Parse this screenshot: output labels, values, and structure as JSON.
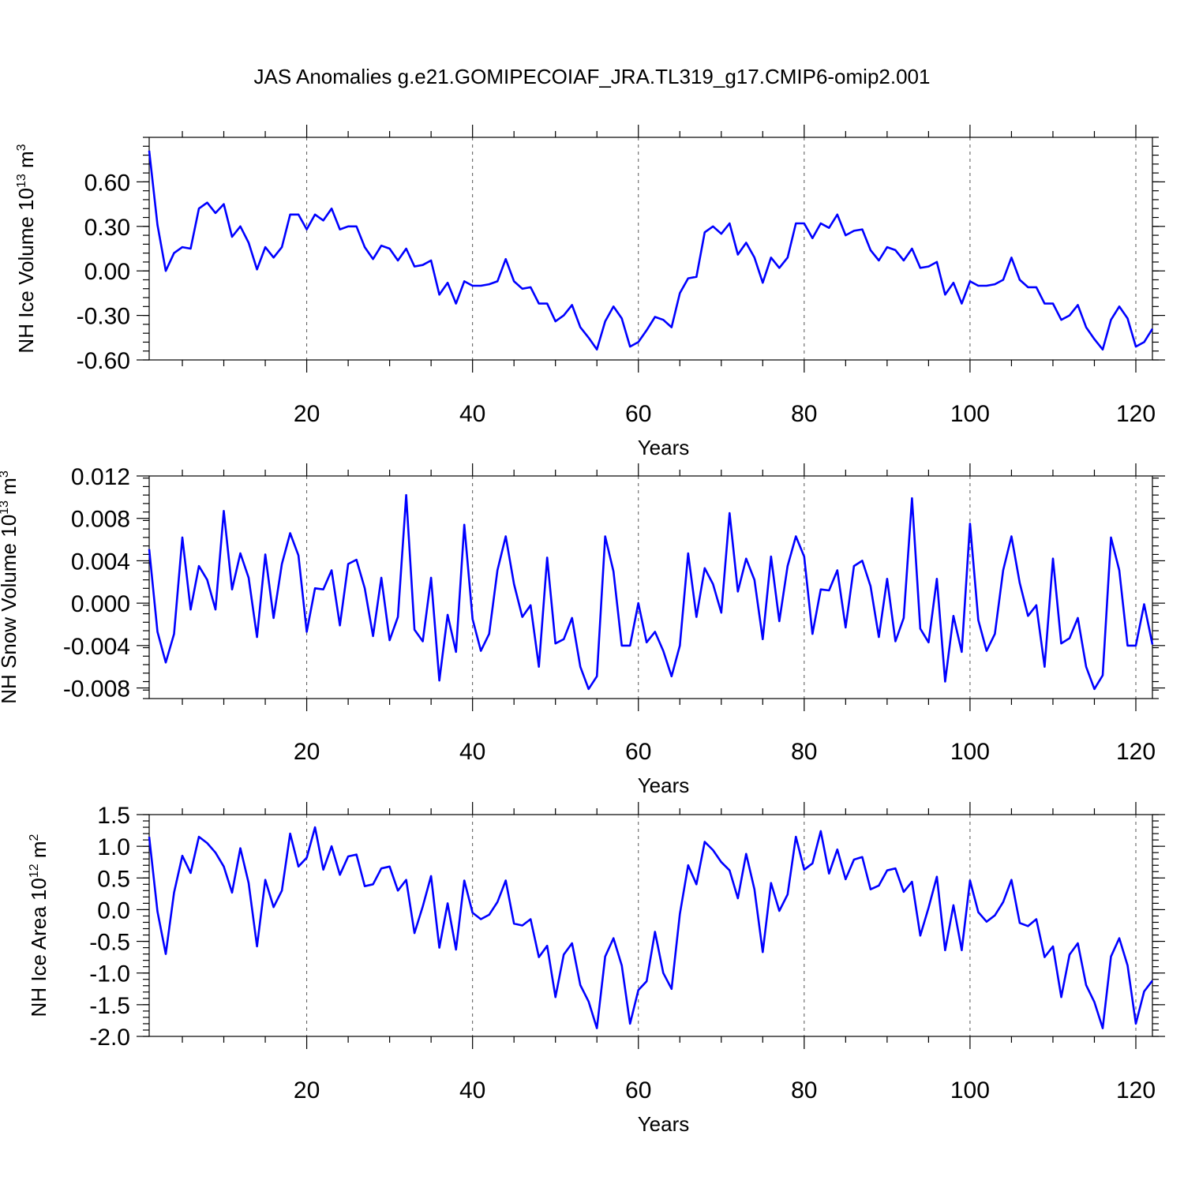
{
  "title": "JAS Anomalies g.e21.GOMIPECOIAF_JRA.TL319_g17.CMIP6-omip2.001",
  "colors": {
    "line": "#0000ff",
    "axes": "#000000",
    "grid": "#555555"
  },
  "chart_data": [
    {
      "type": "line",
      "name": "ice-volume",
      "ylabel_main": "NH Ice Volume 10",
      "ylabel_sup": "13",
      "ylabel_unit": " m",
      "ylabel_unit_sup": "3",
      "xlabel": "Years",
      "xlim": [
        1,
        122
      ],
      "ylim": [
        -0.6,
        0.9
      ],
      "yticks": [
        -0.6,
        -0.3,
        0.0,
        0.3,
        0.6
      ],
      "ytick_labels": [
        "-0.60",
        "-0.30",
        "0.00",
        "0.30",
        "0.60"
      ],
      "yminor_step": 0.06,
      "xticks": [
        20,
        40,
        60,
        80,
        100,
        120
      ],
      "xtick_labels": [
        "20",
        "40",
        "60",
        "80",
        "100",
        "120"
      ],
      "grid_x": true,
      "x": [
        1,
        2,
        3,
        4,
        5,
        6,
        7,
        8,
        9,
        10,
        11,
        12,
        13,
        14,
        15,
        16,
        17,
        18,
        19,
        20,
        21,
        22,
        23,
        24,
        25,
        26,
        27,
        28,
        29,
        30,
        31,
        32,
        33,
        34,
        35,
        36,
        37,
        38,
        39,
        40,
        41,
        42,
        43,
        44,
        45,
        46,
        47,
        48,
        49,
        50,
        51,
        52,
        53,
        54,
        55,
        56,
        57,
        58,
        59,
        60,
        61,
        62,
        63,
        64,
        65,
        66,
        67,
        68,
        69,
        70,
        71,
        72,
        73,
        74,
        75,
        76,
        77,
        78,
        79,
        80,
        81,
        82,
        83,
        84,
        85,
        86,
        87,
        88,
        89,
        90,
        91,
        92,
        93,
        94,
        95,
        96,
        97,
        98,
        99,
        100,
        101,
        102,
        103,
        104,
        105,
        106,
        107,
        108,
        109,
        110,
        111,
        112,
        113,
        114,
        115,
        116,
        117,
        118,
        119,
        120,
        121,
        122
      ],
      "values": [
        0.81,
        0.31,
        0.0,
        0.12,
        0.16,
        0.15,
        0.42,
        0.46,
        0.39,
        0.45,
        0.23,
        0.3,
        0.19,
        0.01,
        0.16,
        0.09,
        0.16,
        0.38,
        0.38,
        0.28,
        0.38,
        0.34,
        0.42,
        0.28,
        0.3,
        0.3,
        0.16,
        0.08,
        0.17,
        0.15,
        0.07,
        0.15,
        0.03,
        0.04,
        0.07,
        -0.16,
        -0.08,
        -0.22,
        -0.07,
        -0.1,
        -0.1,
        -0.09,
        -0.07,
        0.08,
        -0.07,
        -0.12,
        -0.11,
        -0.22,
        -0.22,
        -0.34,
        -0.3,
        -0.23,
        -0.38,
        -0.45,
        -0.53,
        -0.34,
        -0.24,
        -0.32,
        -0.51,
        -0.48,
        -0.4,
        -0.31,
        -0.33,
        -0.38,
        -0.15,
        -0.05,
        -0.04,
        0.26,
        0.3,
        0.25,
        0.32,
        0.11,
        0.19,
        0.09,
        -0.08,
        0.09,
        0.02,
        0.09,
        0.32,
        0.32,
        0.22,
        0.32,
        0.29,
        0.38,
        0.24,
        0.27,
        0.28,
        0.14,
        0.07,
        0.16,
        0.14,
        0.07,
        0.15,
        0.02,
        0.03,
        0.06,
        -0.16,
        -0.08,
        -0.22,
        -0.07,
        -0.1,
        -0.1,
        -0.09,
        -0.06,
        0.09,
        -0.06,
        -0.11,
        -0.11,
        -0.22,
        -0.22,
        -0.33,
        -0.3,
        -0.23,
        -0.38,
        -0.46,
        -0.53,
        -0.33,
        -0.24,
        -0.32,
        -0.51,
        -0.48,
        -0.39
      ]
    },
    {
      "type": "line",
      "name": "snow-volume",
      "ylabel_main": "NH Snow Volume 10",
      "ylabel_sup": "13",
      "ylabel_unit": " m",
      "ylabel_unit_sup": "3",
      "xlabel": "Years",
      "xlim": [
        1,
        122
      ],
      "ylim": [
        -0.009,
        0.012
      ],
      "yticks": [
        -0.008,
        -0.004,
        0.0,
        0.004,
        0.008,
        0.012
      ],
      "ytick_labels": [
        "-0.008",
        "-0.004",
        "0.000",
        "0.004",
        "0.008",
        "0.012"
      ],
      "yminor_step": 0.0008,
      "xticks": [
        20,
        40,
        60,
        80,
        100,
        120
      ],
      "xtick_labels": [
        "20",
        "40",
        "60",
        "80",
        "100",
        "120"
      ],
      "grid_x": true,
      "x": [
        1,
        2,
        3,
        4,
        5,
        6,
        7,
        8,
        9,
        10,
        11,
        12,
        13,
        14,
        15,
        16,
        17,
        18,
        19,
        20,
        21,
        22,
        23,
        24,
        25,
        26,
        27,
        28,
        29,
        30,
        31,
        32,
        33,
        34,
        35,
        36,
        37,
        38,
        39,
        40,
        41,
        42,
        43,
        44,
        45,
        46,
        47,
        48,
        49,
        50,
        51,
        52,
        53,
        54,
        55,
        56,
        57,
        58,
        59,
        60,
        61,
        62,
        63,
        64,
        65,
        66,
        67,
        68,
        69,
        70,
        71,
        72,
        73,
        74,
        75,
        76,
        77,
        78,
        79,
        80,
        81,
        82,
        83,
        84,
        85,
        86,
        87,
        88,
        89,
        90,
        91,
        92,
        93,
        94,
        95,
        96,
        97,
        98,
        99,
        100,
        101,
        102,
        103,
        104,
        105,
        106,
        107,
        108,
        109,
        110,
        111,
        112,
        113,
        114,
        115,
        116,
        117,
        118,
        119,
        120,
        121,
        122
      ],
      "values": [
        0.0051,
        -0.0027,
        -0.0056,
        -0.0029,
        0.0062,
        -0.0006,
        0.0035,
        0.0022,
        -0.0006,
        0.0087,
        0.0013,
        0.0047,
        0.0024,
        -0.0032,
        0.0046,
        -0.0014,
        0.0037,
        0.0066,
        0.0045,
        -0.0027,
        0.0014,
        0.0013,
        0.0031,
        -0.0021,
        0.0037,
        0.0041,
        0.0014,
        -0.0031,
        0.0024,
        -0.0035,
        -0.0013,
        0.0102,
        -0.0025,
        -0.0036,
        0.0024,
        -0.0073,
        -0.0011,
        -0.0046,
        0.0074,
        -0.0015,
        -0.0045,
        -0.0029,
        0.0031,
        0.0063,
        0.0018,
        -0.0013,
        -0.0002,
        -0.006,
        0.0043,
        -0.0038,
        -0.0034,
        -0.0014,
        -0.006,
        -0.0081,
        -0.0069,
        0.0063,
        0.003,
        -0.004,
        -0.004,
        0.0,
        -0.0037,
        -0.0027,
        -0.0045,
        -0.0069,
        -0.004,
        0.0047,
        -0.0013,
        0.0033,
        0.0018,
        -0.0009,
        0.0085,
        0.0011,
        0.0042,
        0.0022,
        -0.0034,
        0.0044,
        -0.0017,
        0.0035,
        0.0063,
        0.0044,
        -0.0029,
        0.0013,
        0.0012,
        0.0031,
        -0.0023,
        0.0035,
        0.004,
        0.0016,
        -0.0032,
        0.0023,
        -0.0036,
        -0.0014,
        0.0099,
        -0.0024,
        -0.0037,
        0.0023,
        -0.0074,
        -0.0012,
        -0.0046,
        0.0075,
        -0.0016,
        -0.0045,
        -0.0029,
        0.0031,
        0.0063,
        0.0019,
        -0.0012,
        -0.0002,
        -0.006,
        0.0042,
        -0.0038,
        -0.0033,
        -0.0014,
        -0.006,
        -0.0081,
        -0.0068,
        0.0062,
        0.0031,
        -0.004,
        -0.004,
        -0.0001,
        -0.0039
      ]
    },
    {
      "type": "line",
      "name": "ice-area",
      "ylabel_main": "NH Ice Area 10",
      "ylabel_sup": "12",
      "ylabel_unit": " m",
      "ylabel_unit_sup": "2",
      "xlabel": "Years",
      "xlim": [
        1,
        122
      ],
      "ylim": [
        -2.0,
        1.5
      ],
      "yticks": [
        -2.0,
        -1.5,
        -1.0,
        -0.5,
        0.0,
        0.5,
        1.0,
        1.5
      ],
      "ytick_labels": [
        "-2.0",
        "-1.5",
        "-1.0",
        "-0.5",
        "0.0",
        "0.5",
        "1.0",
        "1.5"
      ],
      "yminor_step": 0.1,
      "xticks": [
        20,
        40,
        60,
        80,
        100,
        120
      ],
      "xtick_labels": [
        "20",
        "40",
        "60",
        "80",
        "100",
        "120"
      ],
      "grid_x": true,
      "x": [
        1,
        2,
        3,
        4,
        5,
        6,
        7,
        8,
        9,
        10,
        11,
        12,
        13,
        14,
        15,
        16,
        17,
        18,
        19,
        20,
        21,
        22,
        23,
        24,
        25,
        26,
        27,
        28,
        29,
        30,
        31,
        32,
        33,
        34,
        35,
        36,
        37,
        38,
        39,
        40,
        41,
        42,
        43,
        44,
        45,
        46,
        47,
        48,
        49,
        50,
        51,
        52,
        53,
        54,
        55,
        56,
        57,
        58,
        59,
        60,
        61,
        62,
        63,
        64,
        65,
        66,
        67,
        68,
        69,
        70,
        71,
        72,
        73,
        74,
        75,
        76,
        77,
        78,
        79,
        80,
        81,
        82,
        83,
        84,
        85,
        86,
        87,
        88,
        89,
        90,
        91,
        92,
        93,
        94,
        95,
        96,
        97,
        98,
        99,
        100,
        101,
        102,
        103,
        104,
        105,
        106,
        107,
        108,
        109,
        110,
        111,
        112,
        113,
        114,
        115,
        116,
        117,
        118,
        119,
        120,
        121,
        122
      ],
      "values": [
        1.15,
        -0.03,
        -0.7,
        0.27,
        0.85,
        0.58,
        1.15,
        1.05,
        0.9,
        0.68,
        0.27,
        0.97,
        0.42,
        -0.58,
        0.47,
        0.04,
        0.3,
        1.2,
        0.68,
        0.82,
        1.3,
        0.63,
        1.0,
        0.55,
        0.84,
        0.87,
        0.37,
        0.4,
        0.65,
        0.68,
        0.3,
        0.47,
        -0.37,
        0.05,
        0.53,
        -0.6,
        0.1,
        -0.63,
        0.46,
        -0.05,
        -0.15,
        -0.08,
        0.12,
        0.46,
        -0.22,
        -0.25,
        -0.15,
        -0.75,
        -0.57,
        -1.38,
        -0.71,
        -0.53,
        -1.19,
        -1.45,
        -1.87,
        -0.74,
        -0.45,
        -0.88,
        -1.8,
        -1.27,
        -1.13,
        -0.35,
        -1.0,
        -1.25,
        -0.07,
        0.7,
        0.4,
        1.07,
        0.94,
        0.75,
        0.62,
        0.18,
        0.88,
        0.32,
        -0.67,
        0.42,
        -0.02,
        0.24,
        1.15,
        0.63,
        0.73,
        1.24,
        0.57,
        0.95,
        0.48,
        0.79,
        0.83,
        0.32,
        0.38,
        0.62,
        0.65,
        0.28,
        0.44,
        -0.41,
        0.03,
        0.52,
        -0.64,
        0.07,
        -0.64,
        0.46,
        -0.04,
        -0.19,
        -0.09,
        0.12,
        0.47,
        -0.21,
        -0.26,
        -0.15,
        -0.75,
        -0.58,
        -1.38,
        -0.71,
        -0.53,
        -1.19,
        -1.46,
        -1.87,
        -0.74,
        -0.45,
        -0.88,
        -1.8,
        -1.29,
        -1.12
      ]
    }
  ]
}
